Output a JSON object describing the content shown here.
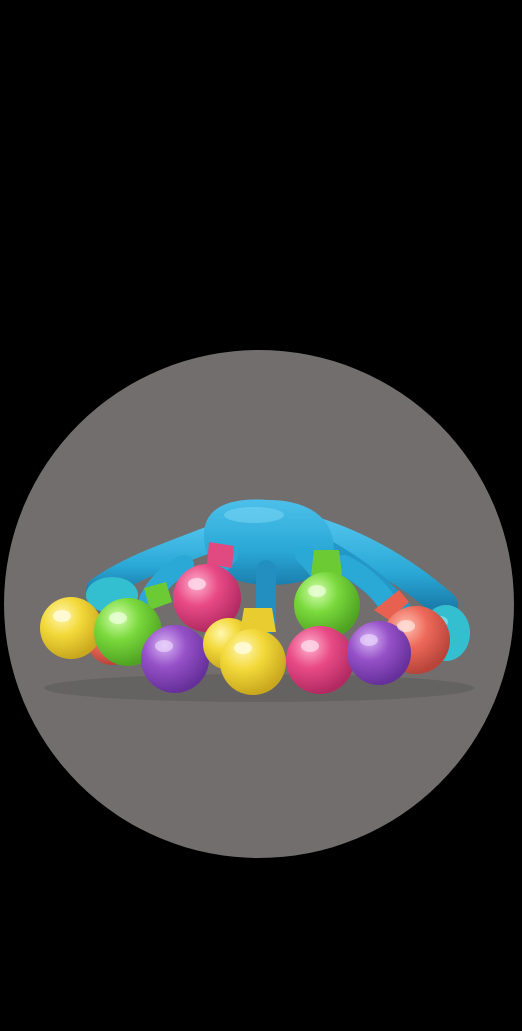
{
  "scene": {
    "subject": "toy",
    "palette": {
      "background": "#000000",
      "circle": "#716e6d",
      "blue": "#2aa8d6",
      "blue_dark": "#1f8fbf",
      "teal": "#34bfd0",
      "yellow": "#f3d93a",
      "pink": "#e94b86",
      "green": "#7ad93c",
      "purple": "#9651c8",
      "coral": "#ee6a5a"
    }
  }
}
